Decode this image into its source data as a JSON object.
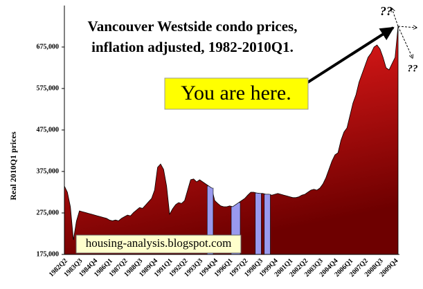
{
  "chart_data": {
    "type": "area",
    "title": [
      "Vancouver Westside condo prices,",
      "inflation adjusted, 1982-2010Q1."
    ],
    "y_label": "Real 2010Q1 prices",
    "callout": "You are here.",
    "source": "housing-analysis.blogspot.com",
    "unknown_top": "??",
    "unknown_right": "??",
    "color": "#cc0000",
    "highlight_color": "#9999ee",
    "highlights": [
      [
        48,
        49
      ],
      [
        56,
        58
      ],
      [
        64,
        65
      ],
      [
        67,
        68
      ]
    ],
    "categories": [
      "1982Q2",
      null,
      null,
      null,
      null,
      "1983Q3",
      null,
      null,
      null,
      null,
      "1984Q4",
      null,
      null,
      null,
      null,
      "1986Q1",
      null,
      null,
      null,
      null,
      "1987Q2",
      null,
      null,
      null,
      null,
      "1988Q3",
      null,
      null,
      null,
      null,
      "1989Q4",
      null,
      null,
      null,
      null,
      "1991Q1",
      null,
      null,
      null,
      null,
      "1992Q2",
      null,
      null,
      null,
      null,
      "1993Q3",
      null,
      null,
      null,
      null,
      "1994Q4",
      null,
      null,
      null,
      null,
      "1996Q1",
      null,
      null,
      null,
      null,
      "1997Q2",
      null,
      null,
      null,
      null,
      "1998Q3",
      null,
      null,
      null,
      null,
      "1999Q4",
      null,
      null,
      null,
      null,
      "2001Q1",
      null,
      null,
      null,
      null,
      "2002Q2",
      null,
      null,
      null,
      null,
      "2003Q3",
      null,
      null,
      null,
      null,
      "2004Q4",
      null,
      null,
      null,
      null,
      "2006Q1",
      null,
      null,
      null,
      null,
      "2007Q2",
      null,
      null,
      null,
      null,
      "2008Q3",
      null,
      null,
      null,
      null,
      "2009Q4",
      null
    ],
    "values": [
      340000,
      325000,
      290000,
      210000,
      255000,
      280000,
      278000,
      276000,
      274000,
      272000,
      270000,
      268000,
      266000,
      264000,
      262000,
      258000,
      256000,
      258000,
      256000,
      262000,
      266000,
      270000,
      268000,
      276000,
      282000,
      288000,
      286000,
      294000,
      302000,
      310000,
      330000,
      385000,
      393000,
      380000,
      340000,
      272000,
      285000,
      295000,
      300000,
      298000,
      305000,
      330000,
      355000,
      357000,
      350000,
      355000,
      350000,
      345000,
      340000,
      335000,
      305000,
      298000,
      292000,
      290000,
      290000,
      292000,
      290000,
      295000,
      300000,
      305000,
      310000,
      318000,
      325000,
      325000,
      323000,
      322000,
      322000,
      320000,
      320000,
      318000,
      320000,
      322000,
      320000,
      318000,
      316000,
      314000,
      312000,
      312000,
      314000,
      318000,
      320000,
      325000,
      330000,
      332000,
      330000,
      335000,
      345000,
      360000,
      380000,
      400000,
      415000,
      420000,
      450000,
      470000,
      480000,
      510000,
      540000,
      560000,
      590000,
      610000,
      630000,
      650000,
      660000,
      675000,
      680000,
      670000,
      650000,
      625000,
      620000,
      635000,
      650000,
      725000
    ],
    "ylim": [
      175000,
      775000
    ],
    "yticks": [
      {
        "value": 175000,
        "label": "175,000"
      },
      {
        "value": 275000,
        "label": "275,000"
      },
      {
        "value": 375000,
        "label": "375,000"
      },
      {
        "value": 475000,
        "label": "475,000"
      },
      {
        "value": 575000,
        "label": "575,000"
      },
      {
        "value": 675000,
        "label": "675,000"
      }
    ]
  }
}
